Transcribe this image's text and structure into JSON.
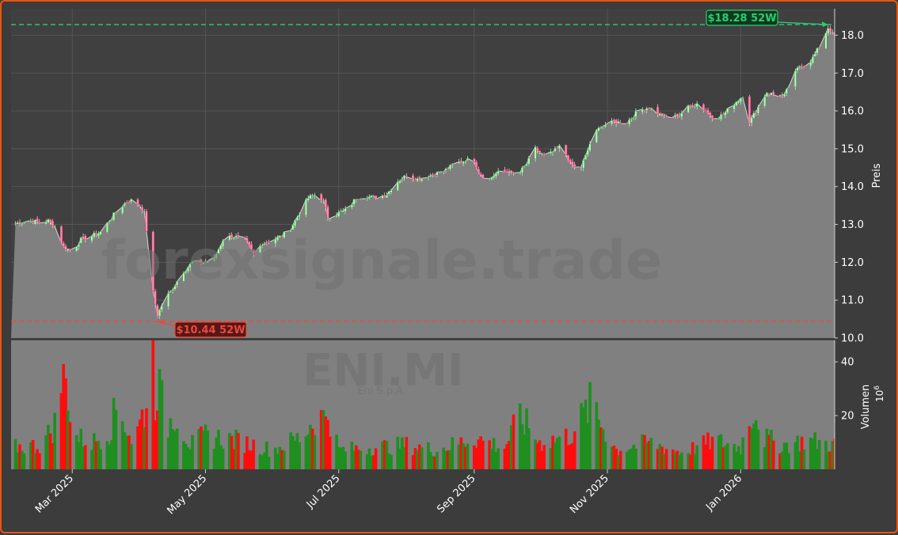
{
  "chart_data": {
    "type": "candlestick",
    "ticker": "ENI.MI",
    "company": "Eni S.p.A.",
    "watermark": "forexsignale.trade",
    "price_axis_label": "Preis",
    "volume_axis_label": "Volumen",
    "volume_multiplier_base": "10",
    "volume_multiplier_exp": "6",
    "price_ylim": [
      10.0,
      18.7
    ],
    "price_ticks": [
      "10.0",
      "11.0",
      "12.0",
      "13.0",
      "14.0",
      "15.0",
      "16.0",
      "17.0",
      "18.0"
    ],
    "volume_ylim": [
      0,
      48
    ],
    "volume_ticks": [
      "20",
      "40"
    ],
    "x_ticks": [
      "Mar 2025",
      "May 2025",
      "Jul 2025",
      "Sep 2025",
      "Nov 2025",
      "Jan 2026"
    ],
    "x_tick_dates": [
      "2025-03-01",
      "2025-05-01",
      "2025-07-01",
      "2025-09-01",
      "2025-11-01",
      "2026-01-01"
    ],
    "x_range": [
      "2025-02-01",
      "2026-02-13"
    ],
    "high_52w": {
      "label": "$18.28 52W",
      "value": 18.28,
      "date": "2026-02-10"
    },
    "low_52w": {
      "label": "$10.44 52W",
      "value": 10.44,
      "date": "2025-04-09"
    },
    "price_path": [
      {
        "date": "2025-02-01",
        "close": 13.0
      },
      {
        "date": "2025-02-05",
        "close": 13.05
      },
      {
        "date": "2025-02-10",
        "close": 13.1
      },
      {
        "date": "2025-02-14",
        "close": 13.05
      },
      {
        "date": "2025-02-18",
        "close": 13.1
      },
      {
        "date": "2025-02-21",
        "close": 12.95
      },
      {
        "date": "2025-02-25",
        "close": 12.4
      },
      {
        "date": "2025-03-01",
        "close": 12.3
      },
      {
        "date": "2025-03-05",
        "close": 12.6
      },
      {
        "date": "2025-03-10",
        "close": 12.7
      },
      {
        "date": "2025-03-14",
        "close": 12.8
      },
      {
        "date": "2025-03-18",
        "close": 13.1
      },
      {
        "date": "2025-03-22",
        "close": 13.4
      },
      {
        "date": "2025-03-26",
        "close": 13.6
      },
      {
        "date": "2025-03-29",
        "close": 13.65
      },
      {
        "date": "2025-04-01",
        "close": 13.5
      },
      {
        "date": "2025-04-03",
        "close": 13.3
      },
      {
        "date": "2025-04-05",
        "close": 12.4
      },
      {
        "date": "2025-04-07",
        "close": 11.2
      },
      {
        "date": "2025-04-09",
        "close": 10.6
      },
      {
        "date": "2025-04-12",
        "close": 11.0
      },
      {
        "date": "2025-04-16",
        "close": 11.3
      },
      {
        "date": "2025-04-20",
        "close": 11.7
      },
      {
        "date": "2025-04-25",
        "close": 12.0
      },
      {
        "date": "2025-04-30",
        "close": 12.0
      },
      {
        "date": "2025-05-05",
        "close": 12.1
      },
      {
        "date": "2025-05-09",
        "close": 12.6
      },
      {
        "date": "2025-05-13",
        "close": 12.7
      },
      {
        "date": "2025-05-19",
        "close": 12.6
      },
      {
        "date": "2025-05-23",
        "close": 12.2
      },
      {
        "date": "2025-05-27",
        "close": 12.5
      },
      {
        "date": "2025-06-01",
        "close": 12.6
      },
      {
        "date": "2025-06-05",
        "close": 12.7
      },
      {
        "date": "2025-06-09",
        "close": 12.9
      },
      {
        "date": "2025-06-13",
        "close": 13.3
      },
      {
        "date": "2025-06-17",
        "close": 13.7
      },
      {
        "date": "2025-06-21",
        "close": 13.8
      },
      {
        "date": "2025-06-24",
        "close": 13.6
      },
      {
        "date": "2025-06-26",
        "close": 13.2
      },
      {
        "date": "2025-07-01",
        "close": 13.3
      },
      {
        "date": "2025-07-05",
        "close": 13.4
      },
      {
        "date": "2025-07-09",
        "close": 13.7
      },
      {
        "date": "2025-07-13",
        "close": 13.75
      },
      {
        "date": "2025-07-18",
        "close": 13.7
      },
      {
        "date": "2025-07-23",
        "close": 13.8
      },
      {
        "date": "2025-07-27",
        "close": 14.1
      },
      {
        "date": "2025-08-01",
        "close": 14.3
      },
      {
        "date": "2025-08-06",
        "close": 14.2
      },
      {
        "date": "2025-08-12",
        "close": 14.3
      },
      {
        "date": "2025-08-18",
        "close": 14.4
      },
      {
        "date": "2025-08-23",
        "close": 14.6
      },
      {
        "date": "2025-08-28",
        "close": 14.7
      },
      {
        "date": "2025-09-01",
        "close": 14.7
      },
      {
        "date": "2025-09-03",
        "close": 14.4
      },
      {
        "date": "2025-09-07",
        "close": 14.15
      },
      {
        "date": "2025-09-11",
        "close": 14.35
      },
      {
        "date": "2025-09-16",
        "close": 14.4
      },
      {
        "date": "2025-09-21",
        "close": 14.3
      },
      {
        "date": "2025-09-25",
        "close": 14.6
      },
      {
        "date": "2025-09-29",
        "close": 15.0
      },
      {
        "date": "2025-10-03",
        "close": 14.8
      },
      {
        "date": "2025-10-07",
        "close": 14.9
      },
      {
        "date": "2025-10-11",
        "close": 15.1
      },
      {
        "date": "2025-10-15",
        "close": 14.6
      },
      {
        "date": "2025-10-19",
        "close": 14.4
      },
      {
        "date": "2025-10-22",
        "close": 14.8
      },
      {
        "date": "2025-10-25",
        "close": 15.3
      },
      {
        "date": "2025-10-29",
        "close": 15.6
      },
      {
        "date": "2025-11-04",
        "close": 15.7
      },
      {
        "date": "2025-11-10",
        "close": 15.7
      },
      {
        "date": "2025-11-15",
        "close": 16.0
      },
      {
        "date": "2025-11-20",
        "close": 16.1
      },
      {
        "date": "2025-11-25",
        "close": 15.9
      },
      {
        "date": "2025-11-30",
        "close": 15.8
      },
      {
        "date": "2025-12-04",
        "close": 15.9
      },
      {
        "date": "2025-12-08",
        "close": 16.1
      },
      {
        "date": "2025-12-12",
        "close": 16.2
      },
      {
        "date": "2025-12-16",
        "close": 16.0
      },
      {
        "date": "2025-12-20",
        "close": 15.8
      },
      {
        "date": "2025-12-24",
        "close": 15.9
      },
      {
        "date": "2025-12-29",
        "close": 16.2
      },
      {
        "date": "2026-01-02",
        "close": 16.4
      },
      {
        "date": "2026-01-05",
        "close": 15.7
      },
      {
        "date": "2026-01-09",
        "close": 16.1
      },
      {
        "date": "2026-01-13",
        "close": 16.5
      },
      {
        "date": "2026-01-17",
        "close": 16.4
      },
      {
        "date": "2026-01-21",
        "close": 16.4
      },
      {
        "date": "2026-01-25",
        "close": 16.9
      },
      {
        "date": "2026-01-28",
        "close": 17.2
      },
      {
        "date": "2026-01-31",
        "close": 17.2
      },
      {
        "date": "2026-02-03",
        "close": 17.4
      },
      {
        "date": "2026-02-06",
        "close": 17.7
      },
      {
        "date": "2026-02-10",
        "close": 18.2
      },
      {
        "date": "2026-02-13",
        "close": 17.95
      }
    ],
    "volume_path": [
      {
        "date": "2025-02-01",
        "value": 9
      },
      {
        "date": "2025-02-15",
        "value": 10
      },
      {
        "date": "2025-02-22",
        "value": 20
      },
      {
        "date": "2025-02-24",
        "value": 37
      },
      {
        "date": "2025-02-27",
        "value": 34
      },
      {
        "date": "2025-03-01",
        "value": 14
      },
      {
        "date": "2025-03-10",
        "value": 11
      },
      {
        "date": "2025-03-18",
        "value": 16
      },
      {
        "date": "2025-03-22",
        "value": 27
      },
      {
        "date": "2025-03-29",
        "value": 10
      },
      {
        "date": "2025-04-03",
        "value": 25
      },
      {
        "date": "2025-04-06",
        "value": 36
      },
      {
        "date": "2025-04-07",
        "value": 47
      },
      {
        "date": "2025-04-08",
        "value": 30
      },
      {
        "date": "2025-04-09",
        "value": 37
      },
      {
        "date": "2025-04-11",
        "value": 27
      },
      {
        "date": "2025-04-14",
        "value": 18
      },
      {
        "date": "2025-04-17",
        "value": 24
      },
      {
        "date": "2025-04-24",
        "value": 10
      },
      {
        "date": "2025-05-01",
        "value": 14
      },
      {
        "date": "2025-05-15",
        "value": 12
      },
      {
        "date": "2025-06-01",
        "value": 8
      },
      {
        "date": "2025-06-15",
        "value": 14
      },
      {
        "date": "2025-06-21",
        "value": 23
      },
      {
        "date": "2025-06-24",
        "value": 21
      },
      {
        "date": "2025-06-26",
        "value": 25
      },
      {
        "date": "2025-07-01",
        "value": 8
      },
      {
        "date": "2025-07-15",
        "value": 9
      },
      {
        "date": "2025-08-01",
        "value": 10
      },
      {
        "date": "2025-08-15",
        "value": 8
      },
      {
        "date": "2025-09-01",
        "value": 13
      },
      {
        "date": "2025-09-15",
        "value": 9
      },
      {
        "date": "2025-09-22",
        "value": 22
      },
      {
        "date": "2025-10-01",
        "value": 11
      },
      {
        "date": "2025-10-15",
        "value": 14
      },
      {
        "date": "2025-10-26",
        "value": 29
      },
      {
        "date": "2025-10-28",
        "value": 21
      },
      {
        "date": "2025-11-05",
        "value": 8
      },
      {
        "date": "2025-11-20",
        "value": 11
      },
      {
        "date": "2025-12-05",
        "value": 7
      },
      {
        "date": "2025-12-20",
        "value": 12
      },
      {
        "date": "2026-01-01",
        "value": 9
      },
      {
        "date": "2026-01-07",
        "value": 26
      },
      {
        "date": "2026-01-12",
        "value": 13
      },
      {
        "date": "2026-01-20",
        "value": 10
      },
      {
        "date": "2026-02-01",
        "value": 12
      },
      {
        "date": "2026-02-13",
        "value": 10
      }
    ],
    "colors": {
      "background": "#3c3c3c",
      "plot_bg": "#404040",
      "area_fill": "#808080",
      "grid": "#5a5a5a",
      "up": "#1f8f1f",
      "down": "#ff0d0d",
      "high_line": "#2ecc71",
      "low_line": "#e74c3c",
      "text": "#ffffff",
      "border": "#e8560f"
    }
  }
}
